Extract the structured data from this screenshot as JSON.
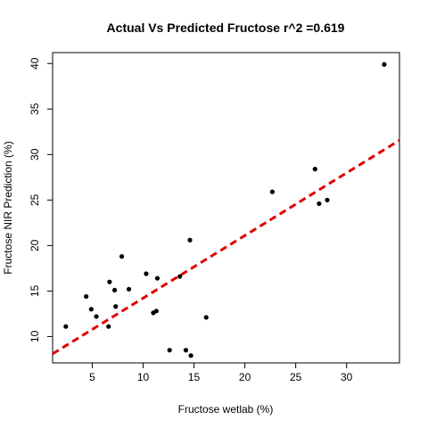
{
  "chart_data": {
    "type": "scatter",
    "title": "Actual Vs Predicted Fructose r^2 =0.619",
    "xlabel": "Fructose wetlab (%)",
    "ylabel": "Fructose NIR Prediction (%)",
    "xlim": [
      1.1,
      35.2
    ],
    "ylim": [
      7.1,
      41.2
    ],
    "xticks": [
      5,
      10,
      15,
      20,
      25,
      30
    ],
    "yticks": [
      10,
      15,
      20,
      25,
      30,
      35,
      40
    ],
    "grid": false,
    "legend": "none",
    "points": [
      {
        "x": 2.4,
        "y": 11.1
      },
      {
        "x": 4.4,
        "y": 14.4
      },
      {
        "x": 4.9,
        "y": 13.0
      },
      {
        "x": 5.4,
        "y": 12.2
      },
      {
        "x": 6.6,
        "y": 11.1
      },
      {
        "x": 6.7,
        "y": 16.0
      },
      {
        "x": 7.2,
        "y": 15.1
      },
      {
        "x": 7.3,
        "y": 13.3
      },
      {
        "x": 7.9,
        "y": 18.8
      },
      {
        "x": 8.6,
        "y": 15.2
      },
      {
        "x": 10.3,
        "y": 16.9
      },
      {
        "x": 11.0,
        "y": 12.6
      },
      {
        "x": 11.3,
        "y": 12.8
      },
      {
        "x": 11.4,
        "y": 16.4
      },
      {
        "x": 12.6,
        "y": 8.5
      },
      {
        "x": 13.6,
        "y": 16.6
      },
      {
        "x": 14.2,
        "y": 8.5
      },
      {
        "x": 14.6,
        "y": 20.6
      },
      {
        "x": 14.7,
        "y": 7.9
      },
      {
        "x": 16.2,
        "y": 12.1
      },
      {
        "x": 22.7,
        "y": 25.9
      },
      {
        "x": 26.9,
        "y": 28.4
      },
      {
        "x": 27.3,
        "y": 24.6
      },
      {
        "x": 28.1,
        "y": 25.0
      },
      {
        "x": 33.7,
        "y": 39.9
      }
    ],
    "fit_line": {
      "slope": 0.688,
      "intercept": 7.34,
      "color": "#e00000",
      "style": "dashed"
    },
    "point_color": "#000000"
  }
}
